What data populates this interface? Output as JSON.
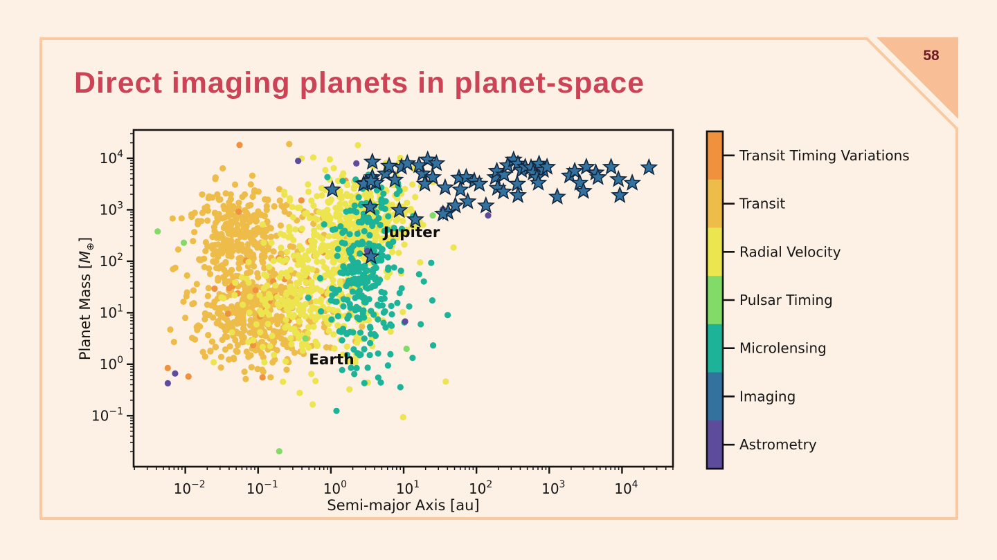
{
  "slide": {
    "title": "Direct imaging planets in planet-space",
    "page_number": "58"
  },
  "theme": {
    "background": "#fdf0e4",
    "frame_border": "#f9c9a2",
    "corner_triangle": "#f8bf97",
    "title_color": "#cb4355",
    "page_number_color": "#701c26",
    "axis_color": "#141414",
    "imaging_edge": "#12263d"
  },
  "chart_data": {
    "type": "scatter",
    "title": "",
    "xlabel": "Semi-major Axis [au]",
    "ylabel": "Planet Mass [M⊕]",
    "x_scale": "log",
    "y_scale": "log",
    "xlim_exp": [
      -2.71,
      4.7
    ],
    "ylim_exp": [
      -1.99,
      4.55
    ],
    "x_tick_exponents": [
      -2,
      -1,
      0,
      1,
      2,
      3,
      4
    ],
    "y_tick_exponents": [
      -1,
      0,
      1,
      2,
      3,
      4
    ],
    "grid": false,
    "legend_position": "right-colorbar",
    "annotations": [
      {
        "text": "Jupiter",
        "loga": 1.11,
        "logm": 2.56
      },
      {
        "text": "Earth",
        "loga": 0.01,
        "logm": 0.09
      }
    ],
    "legend": [
      {
        "id": "transit-timing-variations",
        "label": "Transit Timing Variations",
        "color": "#f0913d"
      },
      {
        "id": "transit",
        "label": "Transit",
        "color": "#edbc49"
      },
      {
        "id": "radial-velocity",
        "label": "Radial Velocity",
        "color": "#ece54f"
      },
      {
        "id": "pulsar-timing",
        "label": "Pulsar Timing",
        "color": "#82da69"
      },
      {
        "id": "microlensing",
        "label": "Microlensing",
        "color": "#1cb399"
      },
      {
        "id": "imaging",
        "label": "Imaging",
        "color": "#33719f"
      },
      {
        "id": "astrometry",
        "label": "Astrometry",
        "color": "#5d4c9b"
      }
    ],
    "point_units": "points are [log10(semi-major axis / au), log10(mass / M_earth)]",
    "series": [
      {
        "id": "transit",
        "name": "Transit",
        "color": "#edbc49",
        "marker": "circle",
        "clusters": [
          {
            "n": 260,
            "x": -1.3,
            "y": 2.55,
            "sx": 0.33,
            "sy": 0.42
          },
          {
            "n": 360,
            "x": -1.05,
            "y": 0.95,
            "sx": 0.38,
            "sy": 0.5
          },
          {
            "n": 70,
            "x": -0.45,
            "y": 1.9,
            "sx": 0.45,
            "sy": 0.85
          },
          {
            "n": 30,
            "x": -1.7,
            "y": 1.8,
            "sx": 0.3,
            "sy": 0.6
          }
        ]
      },
      {
        "id": "transit-timing-variations",
        "name": "Transit Timing Variations",
        "color": "#f0913d",
        "marker": "circle",
        "clusters": [
          {
            "n": 26,
            "x": -1.0,
            "y": 1.5,
            "sx": 0.55,
            "sy": 0.95
          },
          {
            "n": 9,
            "x": 0.25,
            "y": 2.6,
            "sx": 0.4,
            "sy": 0.5
          }
        ]
      },
      {
        "id": "radial-velocity",
        "name": "Radial Velocity",
        "color": "#ece54f",
        "marker": "circle",
        "clusters": [
          {
            "n": 300,
            "x": 0.45,
            "y": 2.85,
            "sx": 0.35,
            "sy": 0.45
          },
          {
            "n": 200,
            "x": -0.1,
            "y": 2.15,
            "sx": 0.42,
            "sy": 0.6
          },
          {
            "n": 140,
            "x": -0.6,
            "y": 1.05,
            "sx": 0.5,
            "sy": 0.5
          },
          {
            "n": 50,
            "x": 0.15,
            "y": 0.7,
            "sx": 0.45,
            "sy": 0.45
          }
        ]
      },
      {
        "id": "microlensing",
        "name": "Microlensing",
        "color": "#1cb399",
        "marker": "circle",
        "clusters": [
          {
            "n": 240,
            "x": 0.45,
            "y": 1.65,
            "sx": 0.27,
            "sy": 0.75
          },
          {
            "n": 25,
            "x": 0.55,
            "y": 3.2,
            "sx": 0.3,
            "sy": 0.3
          },
          {
            "n": 12,
            "x": 1.15,
            "y": 1.3,
            "sx": 0.25,
            "sy": 0.85
          }
        ]
      },
      {
        "id": "astrometry",
        "name": "Astrometry",
        "color": "#5d4c9b",
        "marker": "circle",
        "points": [
          [
            -2.24,
            -0.37
          ],
          [
            -2.14,
            -0.18
          ],
          [
            -0.45,
            3.95
          ],
          [
            2.16,
            2.89
          ],
          [
            1.02,
            0.83
          ],
          [
            1.54,
            3.01
          ],
          [
            0.35,
            3.9
          ],
          [
            0.5,
            2.2
          ],
          [
            0.62,
            3.55
          ]
        ]
      },
      {
        "id": "pulsar-timing",
        "name": "Pulsar Timing",
        "color": "#82da69",
        "marker": "circle",
        "points": [
          [
            -2.38,
            2.58
          ],
          [
            -2.02,
            2.36
          ],
          [
            -0.71,
            -1.69
          ],
          [
            1.04,
            0.3
          ],
          [
            1.4,
            2.89
          ],
          [
            -0.35,
            0.5
          ]
        ]
      },
      {
        "id": "imaging",
        "name": "Imaging",
        "color": "#33719f",
        "marker": "star",
        "points": [
          [
            0.57,
            3.93
          ],
          [
            0.97,
            3.83
          ],
          [
            1.05,
            3.9
          ],
          [
            1.33,
            3.97
          ],
          [
            1.45,
            3.9
          ],
          [
            1.26,
            3.7
          ],
          [
            1.4,
            3.63
          ],
          [
            0.57,
            3.63
          ],
          [
            0.48,
            3.52
          ],
          [
            0.62,
            3.52
          ],
          [
            1.29,
            3.5
          ],
          [
            1.57,
            3.43
          ],
          [
            1.76,
            3.62
          ],
          [
            1.86,
            3.63
          ],
          [
            1.97,
            3.56
          ],
          [
            2.04,
            3.5
          ],
          [
            1.78,
            3.39
          ],
          [
            1.88,
            3.16
          ],
          [
            1.61,
            2.95
          ],
          [
            1.71,
            3.08
          ],
          [
            2.13,
            3.08
          ],
          [
            2.26,
            3.63
          ],
          [
            2.28,
            3.75
          ],
          [
            2.38,
            3.68
          ],
          [
            2.43,
            3.86
          ],
          [
            2.51,
            3.97
          ],
          [
            2.57,
            3.89
          ],
          [
            2.62,
            3.77
          ],
          [
            2.67,
            3.83
          ],
          [
            2.75,
            3.82
          ],
          [
            2.78,
            3.72
          ],
          [
            2.86,
            3.89
          ],
          [
            2.92,
            3.77
          ],
          [
            2.97,
            3.83
          ],
          [
            2.83,
            3.63
          ],
          [
            2.85,
            3.52
          ],
          [
            2.56,
            3.5
          ],
          [
            2.57,
            3.28
          ],
          [
            2.29,
            3.42
          ],
          [
            2.37,
            3.35
          ],
          [
            3.11,
            3.25
          ],
          [
            3.28,
            3.66
          ],
          [
            3.35,
            3.75
          ],
          [
            3.42,
            3.52
          ],
          [
            3.51,
            3.83
          ],
          [
            3.64,
            3.72
          ],
          [
            3.67,
            3.63
          ],
          [
            3.47,
            3.36
          ],
          [
            3.85,
            3.83
          ],
          [
            3.95,
            3.59
          ],
          [
            3.97,
            3.28
          ],
          [
            4.14,
            3.52
          ],
          [
            4.37,
            3.82
          ],
          [
            0.02,
            3.39
          ],
          [
            0.45,
            3.5
          ],
          [
            0.55,
            3.56
          ],
          [
            0.54,
            3.05
          ],
          [
            0.94,
            2.99
          ],
          [
            1.16,
            2.81
          ],
          [
            1.54,
            2.92
          ],
          [
            0.55,
            2.09
          ],
          [
            0.75,
            3.7
          ],
          [
            0.8,
            3.85
          ],
          [
            0.88,
            3.58
          ],
          [
            1.21,
            3.86
          ]
        ]
      }
    ]
  }
}
